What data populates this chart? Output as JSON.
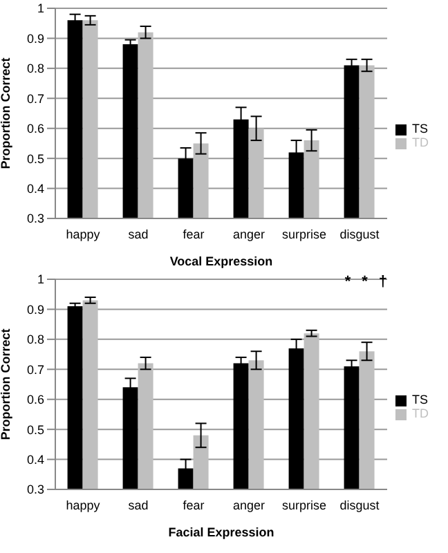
{
  "chart_data": [
    {
      "type": "bar",
      "xlabel": "Vocal Expression",
      "ylabel": "Proportion Correct",
      "categories": [
        "happy",
        "sad",
        "fear",
        "anger",
        "surprise",
        "disgust"
      ],
      "series": [
        {
          "name": "TS",
          "color": "#000000",
          "values": [
            0.96,
            0.88,
            0.5,
            0.63,
            0.52,
            0.81
          ],
          "errors": [
            0.02,
            0.015,
            0.035,
            0.04,
            0.04,
            0.02
          ]
        },
        {
          "name": "TD",
          "color": "#bfbfbf",
          "values": [
            0.96,
            0.92,
            0.55,
            0.6,
            0.56,
            0.81
          ],
          "errors": [
            0.015,
            0.02,
            0.035,
            0.04,
            0.035,
            0.02
          ]
        }
      ],
      "ylim": [
        0.3,
        1
      ],
      "yticks": [
        0.3,
        0.4,
        0.5,
        0.6,
        0.7,
        0.8,
        0.9,
        1
      ],
      "grid": "y",
      "legend": "right"
    },
    {
      "type": "bar",
      "xlabel": "Facial Expression",
      "ylabel": "Proportion Correct",
      "categories": [
        "happy",
        "sad",
        "fear",
        "anger",
        "surprise",
        "disgust"
      ],
      "series": [
        {
          "name": "TS",
          "color": "#000000",
          "values": [
            0.91,
            0.64,
            0.37,
            0.72,
            0.77,
            0.71
          ],
          "errors": [
            0.01,
            0.03,
            0.03,
            0.02,
            0.03,
            0.02
          ]
        },
        {
          "name": "TD",
          "color": "#bfbfbf",
          "values": [
            0.93,
            0.72,
            0.48,
            0.73,
            0.82,
            0.76
          ],
          "errors": [
            0.01,
            0.02,
            0.04,
            0.03,
            0.01,
            0.03
          ]
        }
      ],
      "ylim": [
        0.3,
        1
      ],
      "yticks": [
        0.3,
        0.4,
        0.5,
        0.6,
        0.7,
        0.8,
        0.9,
        1
      ],
      "grid": "y",
      "legend": "right",
      "annotations": [
        "*",
        "*",
        "†"
      ]
    }
  ]
}
